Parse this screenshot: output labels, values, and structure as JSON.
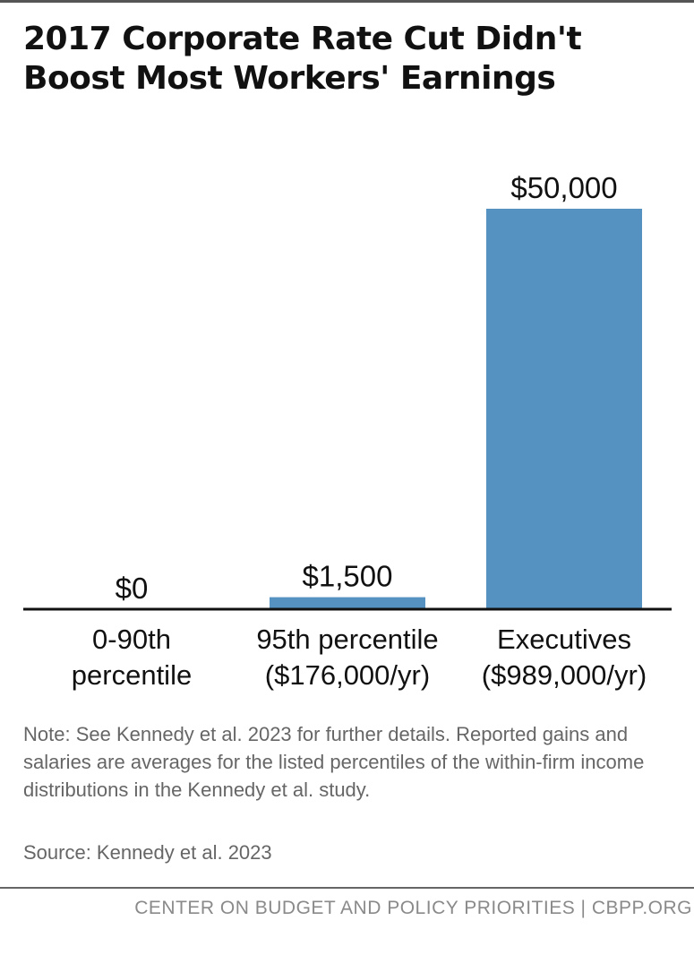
{
  "title": "2017 Corporate Rate Cut Didn't Boost Most Workers' Earnings",
  "chart_data": {
    "type": "bar",
    "categories": [
      [
        "0-90th",
        "percentile"
      ],
      [
        "95th percentile",
        "($176,000/yr)"
      ],
      [
        "Executives",
        "($989,000/yr)"
      ]
    ],
    "values": [
      0,
      1500,
      50000
    ],
    "value_labels": [
      "$0",
      "$1,500",
      "$50,000"
    ],
    "ylim": [
      0,
      50000
    ],
    "grid": false,
    "bar_color": "#5592c2",
    "axis_color": "#111111"
  },
  "note": "Note: See Kennedy et al. 2023 for further details. Reported gains and salaries are averages for the listed percentiles of the within-firm income distributions in the Kennedy et al. study.",
  "source": "Source: Kennedy et al. 2023",
  "footer": "CENTER ON BUDGET AND POLICY PRIORITIES | CBPP.ORG"
}
